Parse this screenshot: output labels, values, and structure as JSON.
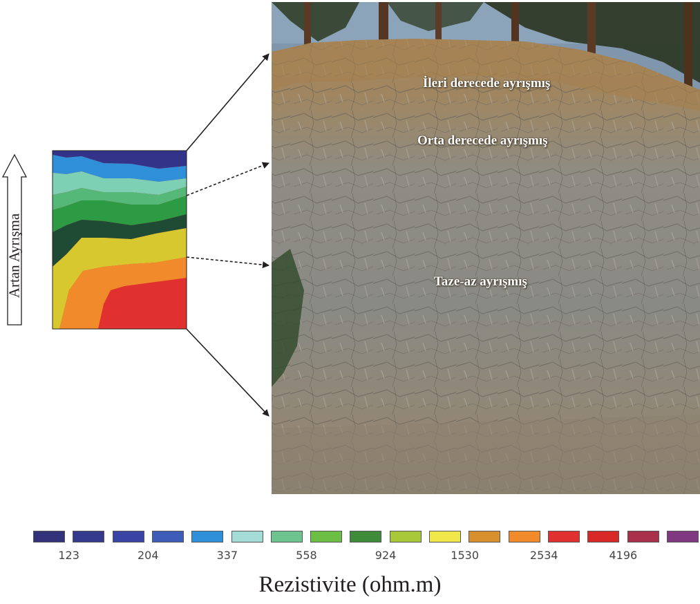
{
  "arrow_label": "Artan Ayrışma",
  "layer_labels": {
    "highly": "İleri derecede ayrışmış",
    "moderately": "Orta derecede ayrışmış",
    "fresh": "Taze-az ayrışmış"
  },
  "legend": {
    "title": "Rezistivite (ohm.m)",
    "tick_labels": [
      "123",
      "204",
      "337",
      "558",
      "924",
      "1530",
      "2534",
      "4196"
    ],
    "swatch_colors": [
      "#34327a",
      "#363a8c",
      "#3a44a4",
      "#3d5db8",
      "#2f8fd8",
      "#a6dcd8",
      "#6ec48e",
      "#6cbf44",
      "#3e8c3a",
      "#a8c83a",
      "#f0e84a",
      "#d8902e",
      "#f08a2a",
      "#e03030",
      "#d82828",
      "#a8304a",
      "#803880"
    ]
  },
  "colors": {
    "arrow": "#231f20",
    "photo_sky": "#7f96ad",
    "photo_soil": "#9a7a52",
    "photo_rock": "#8c8a82"
  }
}
